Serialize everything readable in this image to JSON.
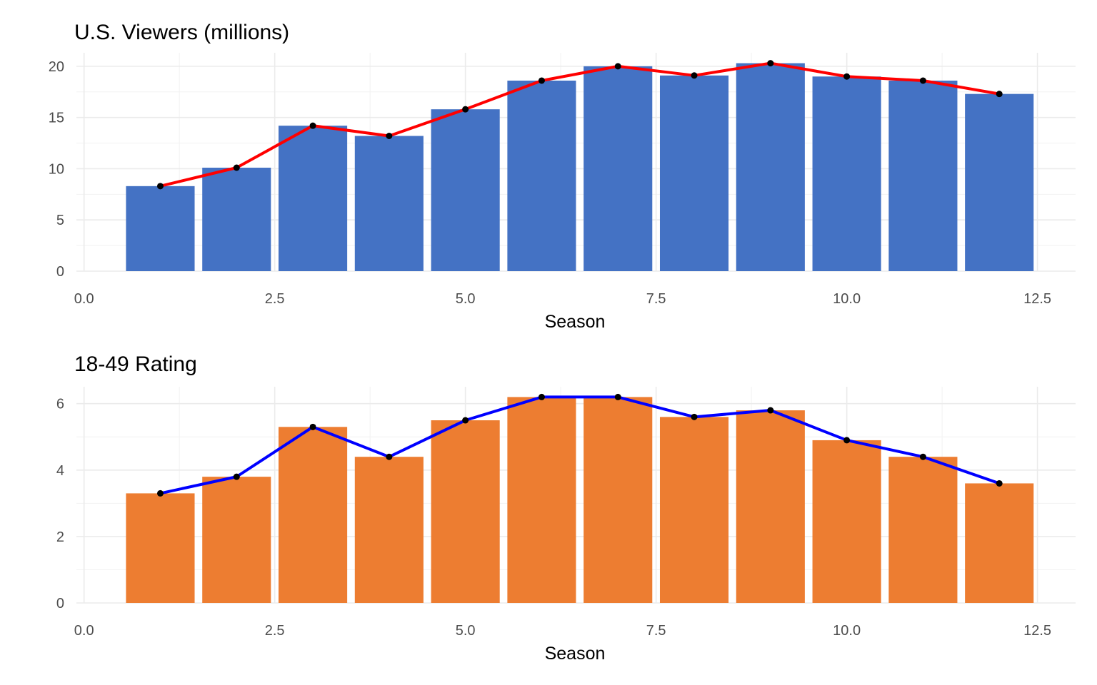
{
  "chart_data": [
    {
      "type": "bar",
      "title": "U.S. Viewers (millions)",
      "xlabel": "Season",
      "ylabel": "",
      "x": [
        1,
        2,
        3,
        4,
        5,
        6,
        7,
        8,
        9,
        10,
        11,
        12
      ],
      "values": [
        8.3,
        10.1,
        14.2,
        13.2,
        15.8,
        18.6,
        20.0,
        19.1,
        20.3,
        19.0,
        18.6,
        17.3
      ],
      "overlay_line": true,
      "xlim": [
        0,
        12.5
      ],
      "ylim": [
        0,
        20.3
      ],
      "x_ticks": [
        0,
        2.5,
        5,
        7.5,
        10,
        12.5
      ],
      "x_tick_labels": [
        "0.0",
        "2.5",
        "5.0",
        "7.5",
        "10.0",
        "12.5"
      ],
      "y_ticks": [
        0,
        5,
        10,
        15,
        20
      ],
      "y_tick_labels": [
        "0",
        "5",
        "10",
        "15",
        "20"
      ],
      "grid": true,
      "bar_color": "#4472C4",
      "line_color": "#FF0000",
      "point_color": "#000000"
    },
    {
      "type": "bar",
      "title": "18-49 Rating",
      "xlabel": "Season",
      "ylabel": "",
      "x": [
        1,
        2,
        3,
        4,
        5,
        6,
        7,
        8,
        9,
        10,
        11,
        12
      ],
      "values": [
        3.3,
        3.8,
        5.3,
        4.4,
        5.5,
        6.2,
        6.2,
        5.6,
        5.8,
        4.9,
        4.4,
        3.6
      ],
      "overlay_line": true,
      "xlim": [
        0,
        12.5
      ],
      "ylim": [
        0,
        6.2
      ],
      "x_ticks": [
        0,
        2.5,
        5,
        7.5,
        10,
        12.5
      ],
      "x_tick_labels": [
        "0.0",
        "2.5",
        "5.0",
        "7.5",
        "10.0",
        "12.5"
      ],
      "y_ticks": [
        0,
        2,
        4,
        6
      ],
      "y_tick_labels": [
        "0",
        "2",
        "4",
        "6"
      ],
      "grid": true,
      "bar_color": "#ED7D31",
      "line_color": "#0000FF",
      "point_color": "#000000"
    }
  ]
}
